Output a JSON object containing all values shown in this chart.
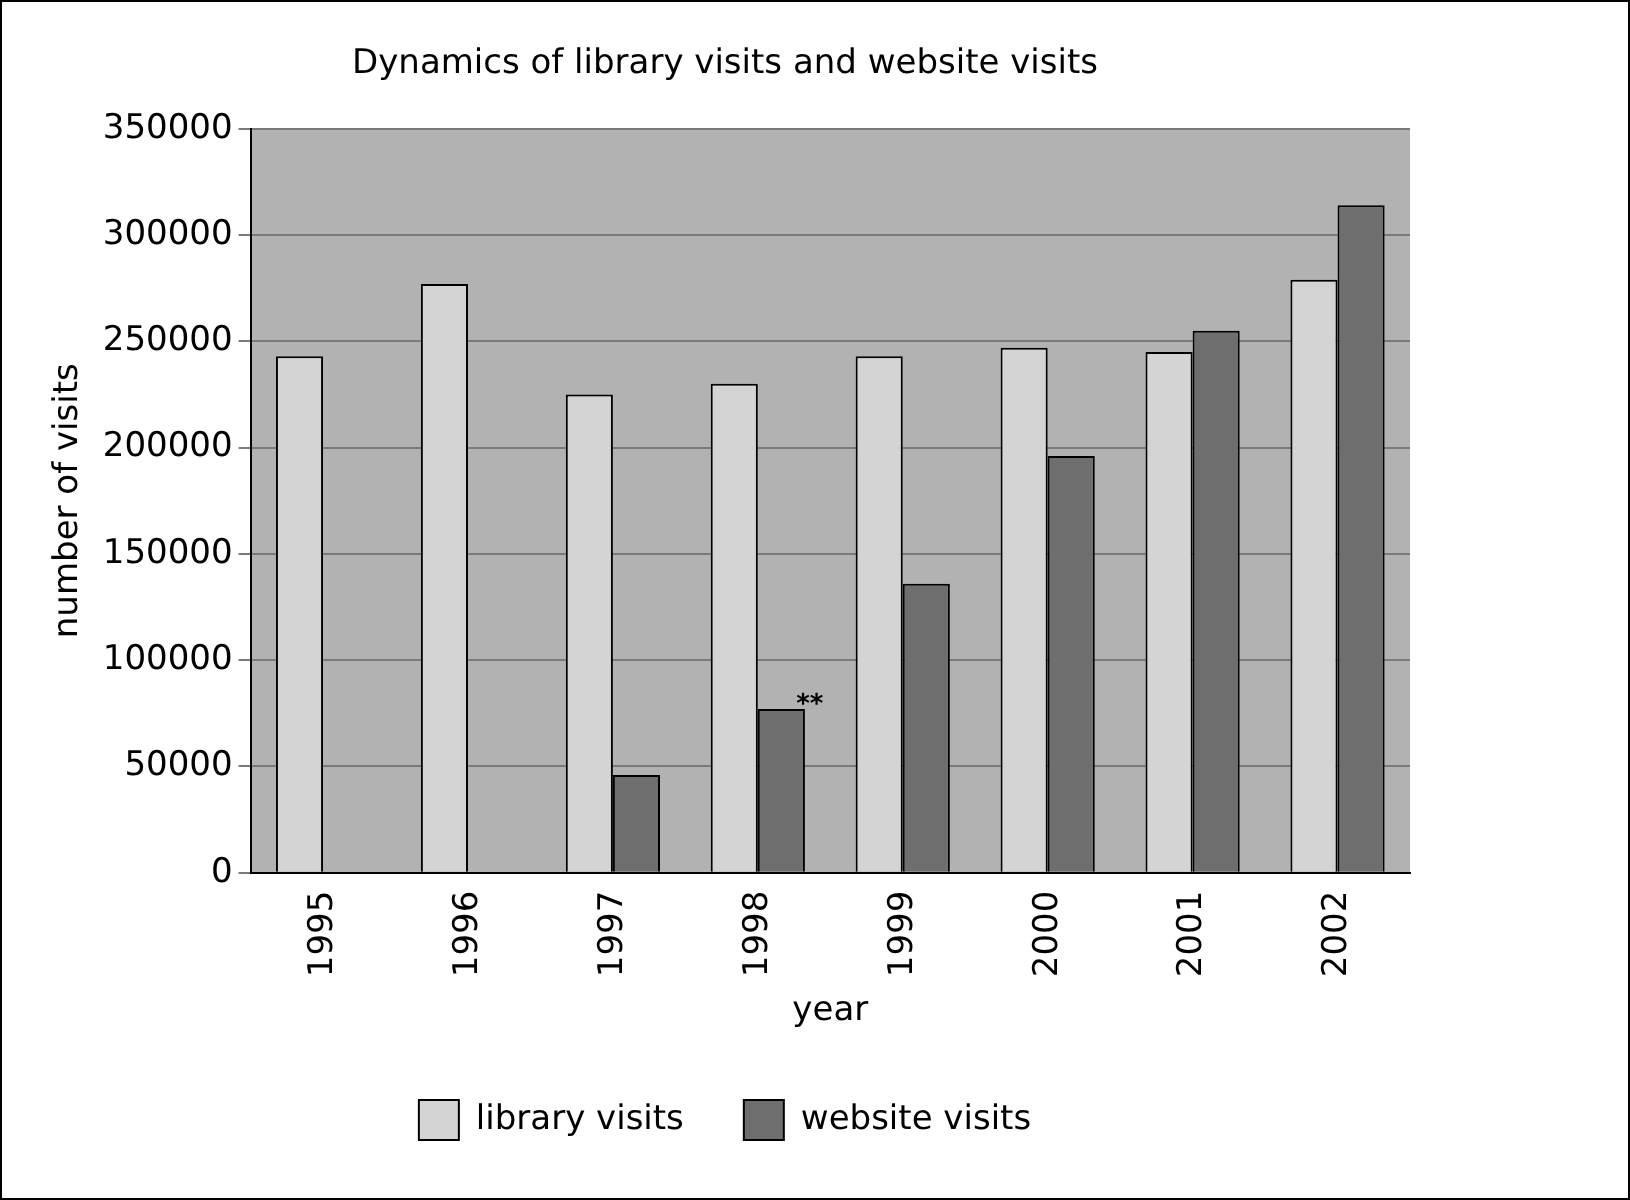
{
  "chart_data": {
    "type": "bar",
    "title": "Dynamics of library visits and website visits",
    "xlabel": "year",
    "ylabel": "number of visits",
    "categories": [
      "1995",
      "1996",
      "1997",
      "1998",
      "1999",
      "2000",
      "2001",
      "2002"
    ],
    "series": [
      {
        "name": "library visits",
        "color": "#d4d4d4",
        "values": [
          243000,
          277000,
          225000,
          230000,
          243000,
          247000,
          245000,
          279000
        ]
      },
      {
        "name": "website visits",
        "color": "#6e6e6e",
        "values": [
          null,
          null,
          46000,
          77000,
          136000,
          196000,
          255000,
          314000
        ]
      }
    ],
    "ylim": [
      0,
      350000
    ],
    "yticks": [
      0,
      50000,
      100000,
      150000,
      200000,
      250000,
      300000,
      350000
    ],
    "grid": "y",
    "legend": "bottom",
    "annotations": [
      {
        "text": "**",
        "x": "1998",
        "y": 77000
      }
    ]
  }
}
